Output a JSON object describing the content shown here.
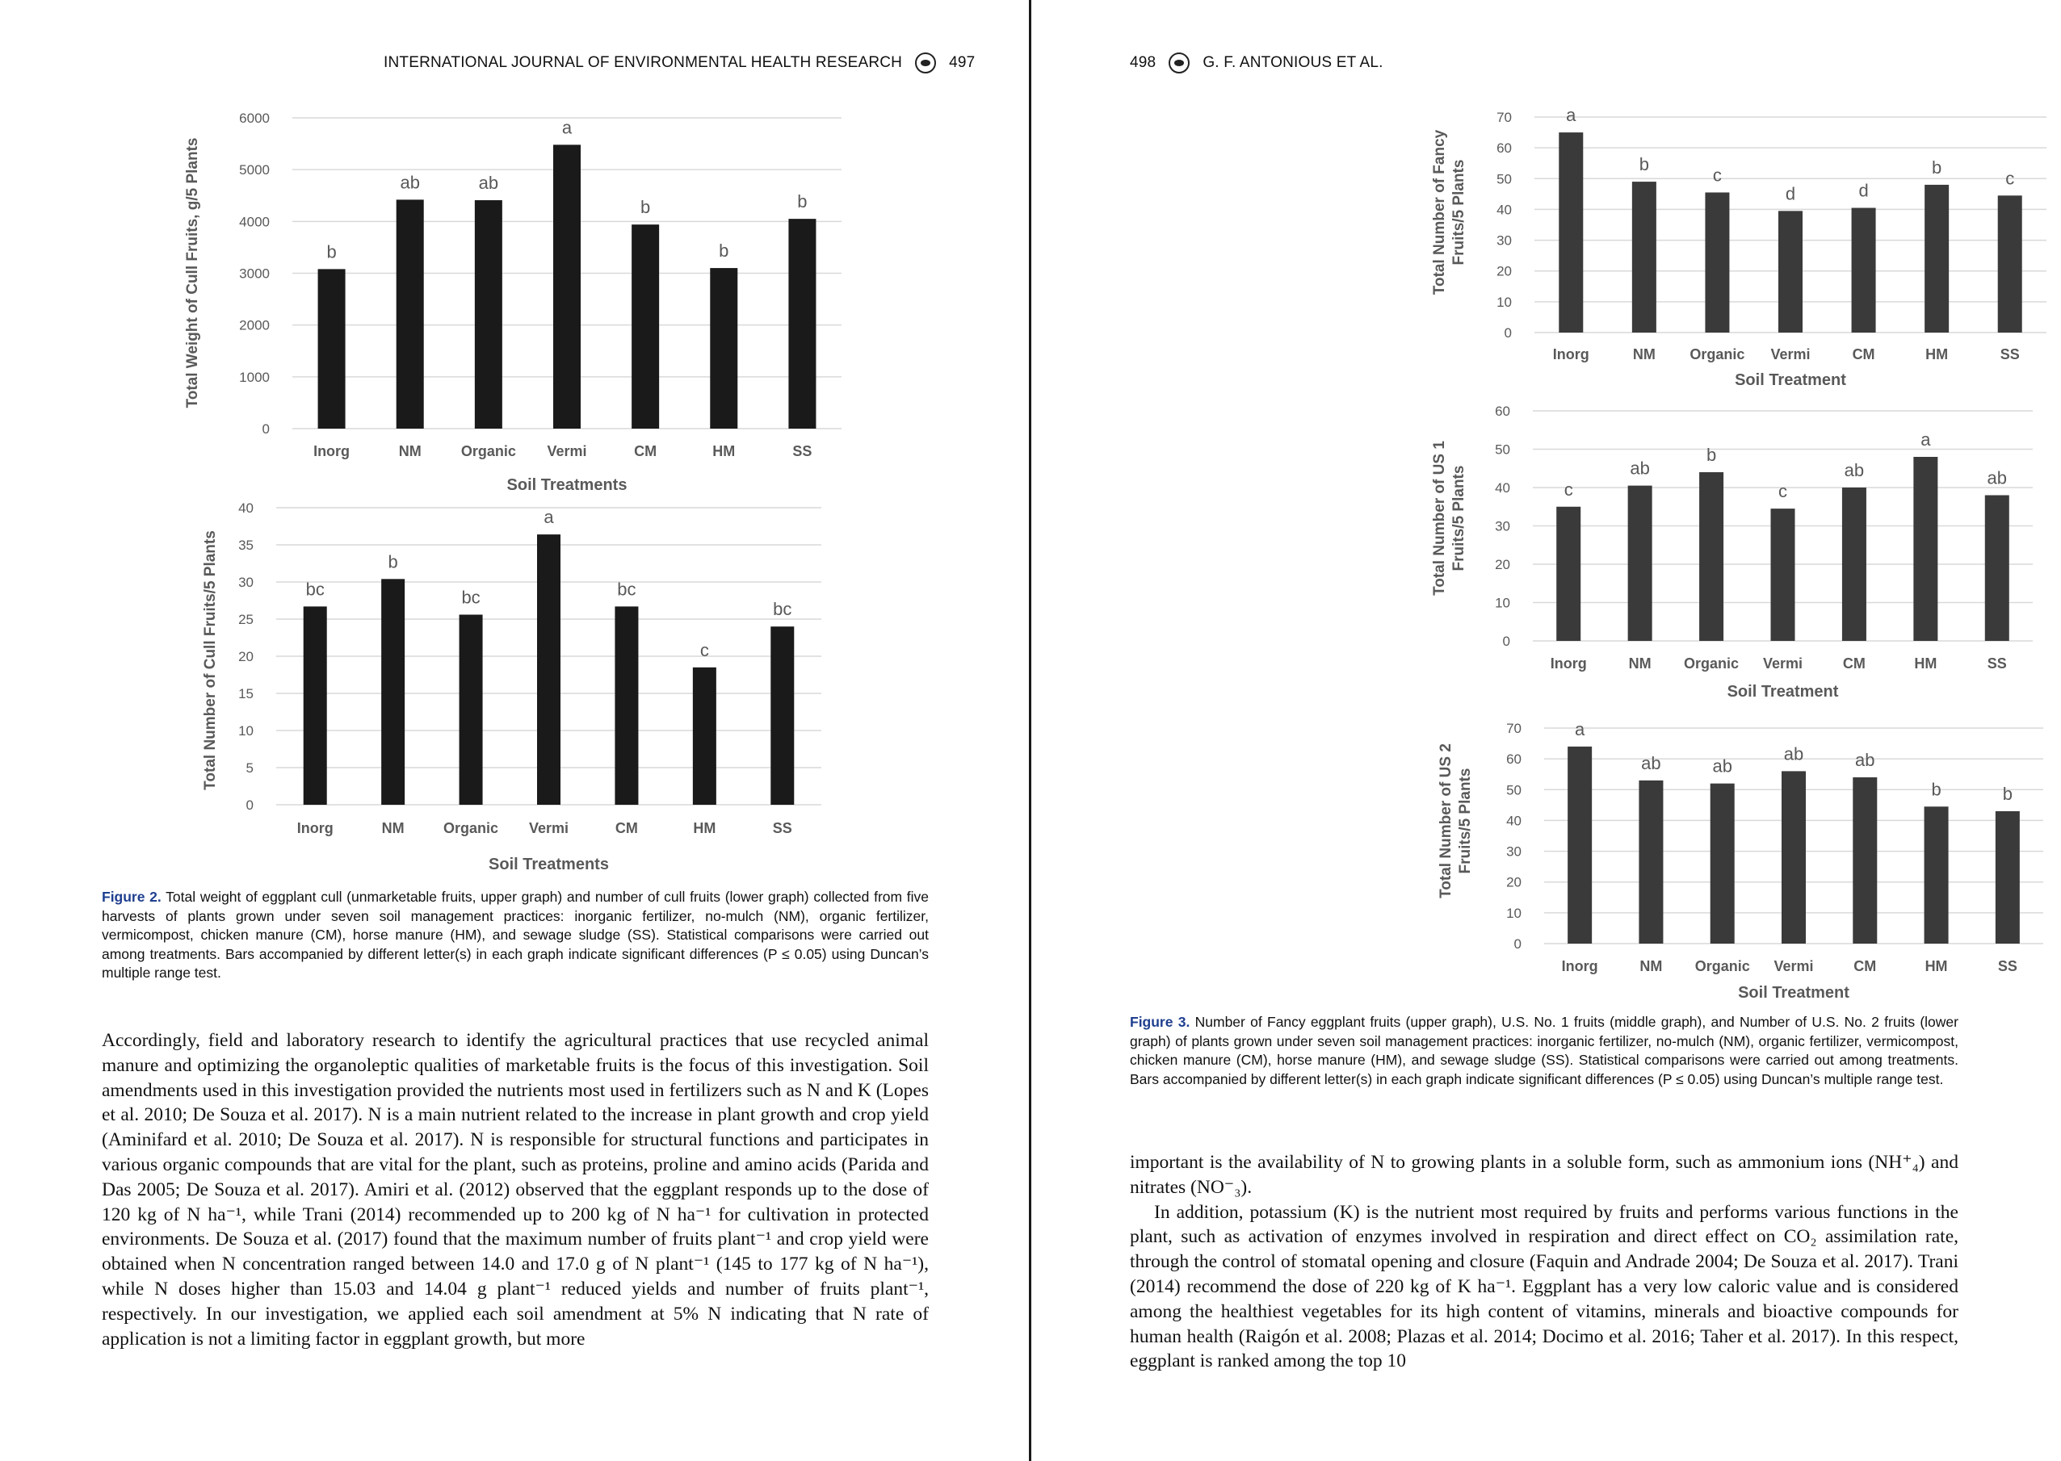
{
  "left_page": {
    "running_head": {
      "journal": "INTERNATIONAL JOURNAL OF ENVIRONMENTAL HEALTH RESEARCH",
      "page_number": "497"
    },
    "figure_caption": {
      "label": "Figure 2.",
      "text": "Total weight of eggplant cull (unmarketable fruits, upper graph) and number of cull fruits (lower graph) collected from five harvests of plants grown under seven soil management practices: inorganic fertilizer, no-mulch (NM), organic fertilizer, vermicompost, chicken manure (CM), horse manure (HM), and sewage sludge (SS). Statistical comparisons were carried out among treatments. Bars accompanied by different letter(s) in each graph indicate significant differences (P ≤ 0.05) using Duncan’s multiple range test."
    },
    "body_text": [
      "Accordingly, field and laboratory research to identify the agricultural practices that use recycled animal manure and optimizing the organoleptic qualities of marketable fruits is the focus of this investigation. Soil amendments used in this investigation provided the nutrients most used in fertilizers such as N and K (Lopes et al. 2010; De Souza et al. 2017). N is a main nutrient related to the increase in plant growth and crop yield (Aminifard et al. 2010; De Souza et al. 2017). N is responsible for structural functions and participates in various organic compounds that are vital for the plant, such as proteins, proline and amino acids (Parida and Das 2005; De Souza et al. 2017). Amiri et al. (2012) observed that the eggplant responds up to the dose of 120 kg of N ha⁻¹, while Trani (2014) recommended up to 200 kg of N ha⁻¹ for cultivation in protected environments. De Souza et al. (2017) found that the maximum number of fruits plant⁻¹ and crop yield were obtained when N concentration ranged between 14.0 and 17.0 g of N plant⁻¹ (145 to 177 kg of N ha⁻¹), while N doses higher than 15.03 and 14.04 g plant⁻¹ reduced yields and number of fruits plant⁻¹, respectively. In our investigation, we applied each soil amendment at 5% N indicating that N rate of application is not a limiting factor in eggplant growth, but more"
    ]
  },
  "right_page": {
    "running_head": {
      "page_number": "498",
      "authors": "G. F. ANTONIOUS ET AL."
    },
    "figure_caption": {
      "label": "Figure 3.",
      "text": "Number of Fancy eggplant fruits (upper graph), U.S. No. 1 fruits (middle graph), and Number of U.S. No. 2 fruits (lower graph) of plants grown under seven soil management practices: inorganic fertilizer, no-mulch (NM), organic fertilizer, vermicompost, chicken manure (CM), horse manure (HM), and sewage sludge (SS). Statistical comparisons were carried out among treatments. Bars accompanied by different letter(s) in each graph indicate significant differences (P ≤ 0.05) using Duncan’s multiple range test."
    },
    "body_text": [
      "important is the availability of N to growing plants in a soluble form, such as ammonium ions (NH⁺₄) and nitrates (NO⁻₃).",
      "In addition, potassium (K) is the nutrient most required by fruits and performs various functions in the plant, such as activation of enzymes involved in respiration and direct effect on CO₂ assimilation rate, through the control of stomatal opening and closure (Faquin and Andrade 2004; De Souza et al. 2017). Trani (2014) recommend the dose of 220 kg of K ha⁻¹. Eggplant has a very low caloric value and is considered among the healthiest vegetables for its high content of vitamins, minerals and bioactive compounds for human health (Raigón et al. 2008; Plazas et al. 2014; Docimo et al. 2016; Taher et al. 2017). In this respect, eggplant is ranked among the top 10"
    ]
  },
  "colors": {
    "bar_fig2": "#1a1a1a",
    "bar_fig3": "#3a3a3a",
    "gridline": "#d9d9d9",
    "axis_text": "#595959",
    "caption_label": "#1f3f8f"
  },
  "chart_data": [
    {
      "id": "cull-weight",
      "type": "bar",
      "categories": [
        "Inorg",
        "NM",
        "Organic",
        "Vermi",
        "CM",
        "HM",
        "SS"
      ],
      "values": [
        3080,
        4420,
        4410,
        5480,
        3940,
        3100,
        4050
      ],
      "significance_letters": [
        "b",
        "ab",
        "ab",
        "a",
        "b",
        "b",
        "b"
      ],
      "ylabel": "Total Weight of Cull Fruits, g/5 Plants",
      "xlabel": "Soil Treatments",
      "ylim": [
        0,
        6000
      ],
      "yticks": [
        0,
        1000,
        2000,
        3000,
        4000,
        5000,
        6000
      ],
      "grid": true
    },
    {
      "id": "cull-number",
      "type": "bar",
      "categories": [
        "Inorg",
        "NM",
        "Organic",
        "Vermi",
        "CM",
        "HM",
        "SS"
      ],
      "values": [
        26.7,
        30.4,
        25.6,
        36.4,
        26.7,
        18.5,
        24.0
      ],
      "significance_letters": [
        "bc",
        "b",
        "bc",
        "a",
        "bc",
        "c",
        "bc"
      ],
      "ylabel": "Total Number of Cull Fruits/5 Plants",
      "xlabel": "Soil Treatments",
      "ylim": [
        0,
        40
      ],
      "yticks": [
        0,
        5,
        10,
        15,
        20,
        25,
        30,
        35,
        40
      ],
      "grid": true
    },
    {
      "id": "fancy-fruits",
      "type": "bar",
      "categories": [
        "Inorg",
        "NM",
        "Organic",
        "Vermi",
        "CM",
        "HM",
        "SS"
      ],
      "values": [
        65,
        49,
        45.5,
        39.5,
        40.5,
        48,
        44.5
      ],
      "significance_letters": [
        "a",
        "b",
        "c",
        "d",
        "d",
        "b",
        "c"
      ],
      "ylabel": "Total Number of Fancy Fruits/5 Plants",
      "xlabel": "Soil Treatment",
      "ylim": [
        0,
        70
      ],
      "yticks": [
        0,
        10,
        20,
        30,
        40,
        50,
        60,
        70
      ],
      "grid": true
    },
    {
      "id": "us1-fruits",
      "type": "bar",
      "categories": [
        "Inorg",
        "NM",
        "Organic",
        "Vermi",
        "CM",
        "HM",
        "SS"
      ],
      "values": [
        35,
        40.5,
        44,
        34.5,
        40,
        48,
        38
      ],
      "significance_letters": [
        "c",
        "ab",
        "b",
        "c",
        "ab",
        "a",
        "ab"
      ],
      "ylabel": "Total Number of US 1 Fruits/5 Plants",
      "xlabel": "Soil Treatment",
      "ylim": [
        0,
        60
      ],
      "yticks": [
        0,
        10,
        20,
        30,
        40,
        50,
        60
      ],
      "grid": true
    },
    {
      "id": "us2-fruits",
      "type": "bar",
      "categories": [
        "Inorg",
        "NM",
        "Organic",
        "Vermi",
        "CM",
        "HM",
        "SS"
      ],
      "values": [
        64,
        53,
        52,
        56,
        54,
        44.5,
        43
      ],
      "significance_letters": [
        "a",
        "ab",
        "ab",
        "ab",
        "ab",
        "b",
        "b"
      ],
      "ylabel": "Total Number of US 2 Fruits/5 Plants",
      "xlabel": "Soil Treatment",
      "ylim": [
        0,
        70
      ],
      "yticks": [
        0,
        10,
        20,
        30,
        40,
        50,
        60,
        70
      ],
      "grid": true
    }
  ]
}
